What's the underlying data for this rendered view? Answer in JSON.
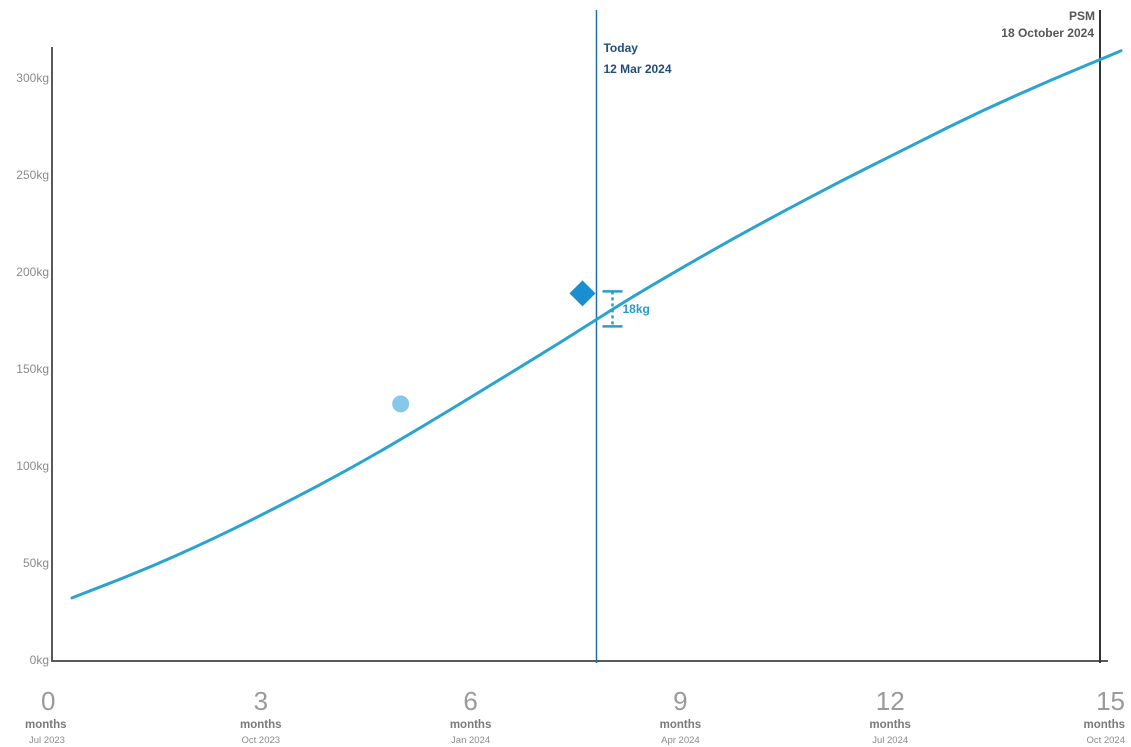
{
  "chart_data": {
    "type": "line",
    "x_unit": "months",
    "y_unit": "kg",
    "ylim": [
      0,
      320
    ],
    "xlim": [
      0,
      15
    ],
    "y_ticks": [
      "0kg",
      "50kg",
      "100kg",
      "150kg",
      "200kg",
      "250kg",
      "300kg"
    ],
    "y_tick_values": [
      0,
      50,
      100,
      150,
      200,
      250,
      300
    ],
    "x_ticks": [
      {
        "value": 0,
        "number": "0",
        "unit": "months",
        "date": "Jul 2023"
      },
      {
        "value": 3,
        "number": "3",
        "unit": "months",
        "date": "Oct 2023"
      },
      {
        "value": 6,
        "number": "6",
        "unit": "months",
        "date": "Jan 2024"
      },
      {
        "value": 9,
        "number": "9",
        "unit": "months",
        "date": "Apr 2024"
      },
      {
        "value": 12,
        "number": "12",
        "unit": "months",
        "date": "Jul 2024"
      },
      {
        "value": 15,
        "number": "15",
        "unit": "months",
        "date": "Oct 2024"
      }
    ],
    "series": [
      {
        "color": "#2aa3cf",
        "x": [
          0.3,
          1.3,
          2.3,
          3.3,
          4.3,
          5.3,
          6.3,
          7.3,
          8.3,
          9.3,
          10.3,
          11.3,
          12.3,
          13.3,
          14.3,
          15.3
        ],
        "y": [
          32,
          46,
          62,
          80,
          99,
          120,
          142,
          164,
          187,
          208,
          228,
          247,
          265,
          283,
          299,
          314
        ]
      }
    ],
    "points": [
      {
        "shape": "circle",
        "x": 5.0,
        "y": 132,
        "color": "#86c7ea"
      },
      {
        "shape": "diamond",
        "x": 7.6,
        "y": 189,
        "color": "#1a8fcf"
      }
    ],
    "markers": [
      {
        "x": 7.8,
        "line1": "Today",
        "line2": "12 Mar 2024",
        "color": "#1f6fa0"
      },
      {
        "x": 15.0,
        "line1": "PSM",
        "line2": "18 October 2024",
        "color": "#333333"
      }
    ],
    "difference": {
      "label": "18kg",
      "from": 172,
      "to": 190,
      "color": "#2a9cc8"
    },
    "grid": false
  }
}
